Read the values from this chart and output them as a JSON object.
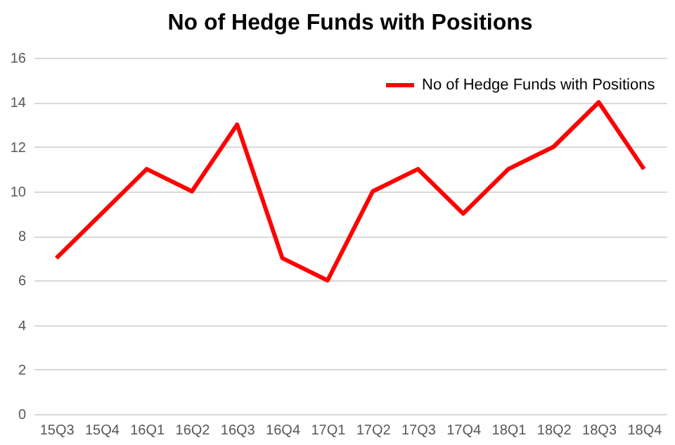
{
  "chart_data": {
    "type": "line",
    "title": "No of Hedge Funds with Positions",
    "categories": [
      "15Q3",
      "15Q4",
      "16Q1",
      "16Q2",
      "16Q3",
      "16Q4",
      "17Q1",
      "17Q2",
      "17Q3",
      "17Q4",
      "18Q1",
      "18Q2",
      "18Q3",
      "18Q4"
    ],
    "series": [
      {
        "name": "No of Hedge Funds with Positions",
        "color": "#ff0000",
        "values": [
          7,
          9,
          11,
          10,
          13,
          7,
          6,
          10,
          11,
          9,
          11,
          12,
          14,
          11
        ]
      }
    ],
    "ylim": [
      0,
      16
    ],
    "yticks": [
      0,
      2,
      4,
      6,
      8,
      10,
      12,
      14,
      16
    ],
    "grid": "y",
    "legend": "top right",
    "marker": "none",
    "line_style": "solid"
  }
}
